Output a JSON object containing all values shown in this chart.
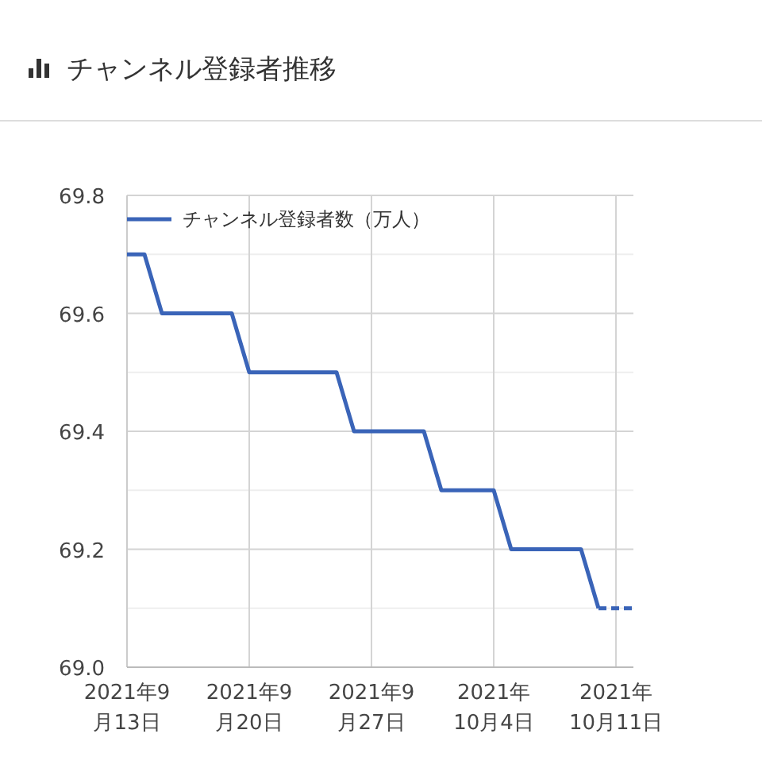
{
  "chart_data": {
    "type": "line",
    "title": "チャンネル登録者推移",
    "legend": "top left",
    "grid": true,
    "xlim": [
      "2021-09-13",
      "2021-10-12"
    ],
    "xticks": [
      {
        "value": "2021-09-13",
        "label": "2021年9\n月13日"
      },
      {
        "value": "2021-09-20",
        "label": "2021年9\n月20日"
      },
      {
        "value": "2021-09-27",
        "label": "2021年9\n月27日"
      },
      {
        "value": "2021-10-04",
        "label": "2021年\n10月4日"
      },
      {
        "value": "2021-10-11",
        "label": "2021年\n10月11日"
      }
    ],
    "ylim": [
      69.0,
      69.8
    ],
    "yticks": [
      {
        "value": 69.0,
        "label": "69.0"
      },
      {
        "value": 69.1,
        "label": null
      },
      {
        "value": 69.2,
        "label": "69.2"
      },
      {
        "value": 69.3,
        "label": null
      },
      {
        "value": 69.4,
        "label": "69.4"
      },
      {
        "value": 69.5,
        "label": null
      },
      {
        "value": 69.6,
        "label": "69.6"
      },
      {
        "value": 69.7,
        "label": null
      },
      {
        "value": 69.8,
        "label": "69.8"
      }
    ],
    "series": [
      {
        "name": "チャンネル登録者数（万人）",
        "color": "#3a64b8",
        "line_style": "solid",
        "x": [
          "2021-09-13",
          "2021-09-14",
          "2021-09-15",
          "2021-09-19",
          "2021-09-20",
          "2021-09-25",
          "2021-09-26",
          "2021-09-30",
          "2021-10-01",
          "2021-10-04",
          "2021-10-05",
          "2021-10-09",
          "2021-10-10"
        ],
        "values": [
          69.7,
          69.7,
          69.6,
          69.6,
          69.5,
          69.5,
          69.4,
          69.4,
          69.3,
          69.3,
          69.2,
          69.2,
          69.1
        ]
      },
      {
        "color": "#3a64b8",
        "line_style": "dashed",
        "x": [
          "2021-10-10",
          "2021-10-11",
          "2021-10-12"
        ],
        "values": [
          69.1,
          69.1,
          69.1
        ]
      }
    ]
  }
}
